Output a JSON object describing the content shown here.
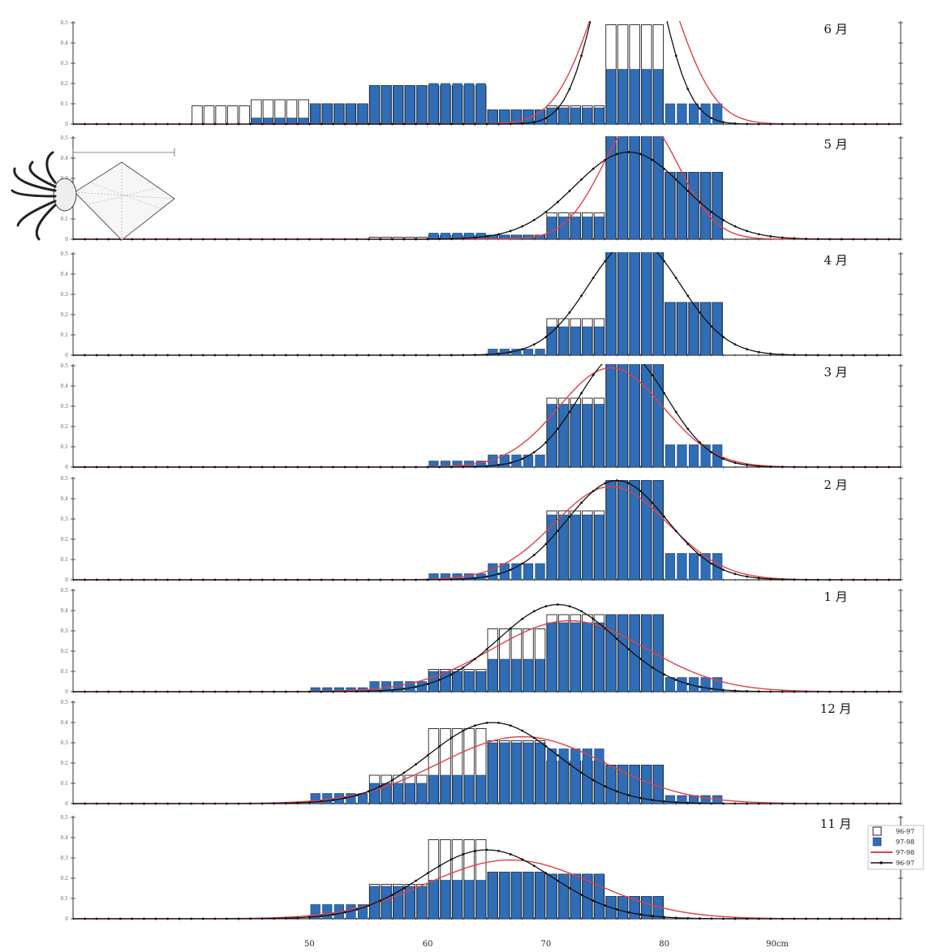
{
  "chart_data": {
    "type": "bar",
    "x_unit_label": "90cm",
    "x_ticks": [
      50,
      60,
      70,
      80
    ],
    "x_range": [
      30,
      100
    ],
    "y_range": [
      0,
      0.5
    ],
    "y_ticks": [
      0,
      0.1,
      0.2,
      0.3,
      0.4,
      0.5
    ],
    "legend": [
      {
        "label": "96-97",
        "kind": "hollow-bar"
      },
      {
        "label": "97-98",
        "kind": "filled-bar"
      },
      {
        "label": "97-98",
        "kind": "red-line"
      },
      {
        "label": "96-97",
        "kind": "black-line"
      }
    ],
    "colors": {
      "filled_bar": "#2f6db6",
      "hollow_bar_stroke": "#222222",
      "red_line": "#e0404a",
      "black_line": "#111111"
    },
    "panels": [
      {
        "month": "6 月",
        "hollow_groups": [
          [
            40,
            45,
            0.09
          ],
          [
            45,
            50,
            0.12
          ],
          [
            50,
            55,
            0.1
          ],
          [
            55,
            60,
            0.19
          ],
          [
            60,
            65,
            0.19
          ],
          [
            65,
            70,
            0.07
          ],
          [
            70,
            75,
            0.09
          ],
          [
            75,
            80,
            0.49
          ]
        ],
        "filled_groups": [
          [
            45,
            50,
            0.03
          ],
          [
            50,
            55,
            0.1
          ],
          [
            55,
            60,
            0.19
          ],
          [
            60,
            65,
            0.2
          ],
          [
            65,
            70,
            0.07
          ],
          [
            70,
            75,
            0.08
          ],
          [
            75,
            80,
            0.27
          ],
          [
            80,
            85,
            0.1
          ]
        ],
        "black_curve": {
          "mu": 77,
          "sigma": 2.6,
          "peak": 1.1
        },
        "red_curve": {
          "mu": 77.5,
          "sigma": 3.4,
          "peak": 0.95
        }
      },
      {
        "month": "5 月",
        "hollow_groups": [
          [
            55,
            60,
            0.01
          ],
          [
            60,
            65,
            0.02
          ],
          [
            65,
            70,
            0.02
          ],
          [
            70,
            75,
            0.13
          ],
          [
            75,
            80,
            0.51
          ],
          [
            80,
            85,
            0.33
          ]
        ],
        "filled_groups": [
          [
            60,
            65,
            0.03
          ],
          [
            65,
            70,
            0.02
          ],
          [
            70,
            75,
            0.11
          ],
          [
            75,
            80,
            0.51
          ],
          [
            80,
            85,
            0.33
          ]
        ],
        "black_curve": {
          "mu": 77,
          "sigma": 4.6,
          "peak": 0.43
        },
        "red_curve": {
          "mu": 78,
          "sigma": 3.2,
          "peak": 0.6
        }
      },
      {
        "month": "4 月",
        "hollow_groups": [
          [
            70,
            75,
            0.18
          ],
          [
            75,
            80,
            0.52
          ],
          [
            80,
            85,
            0.26
          ]
        ],
        "filled_groups": [
          [
            65,
            70,
            0.03
          ],
          [
            70,
            75,
            0.14
          ],
          [
            75,
            80,
            0.52
          ],
          [
            80,
            85,
            0.26
          ]
        ],
        "black_curve": {
          "mu": 77.5,
          "sigma": 3.9,
          "peak": 0.57
        }
      },
      {
        "month": "3 月",
        "hollow_groups": [
          [
            70,
            75,
            0.34
          ],
          [
            75,
            80,
            0.52
          ]
        ],
        "filled_groups": [
          [
            60,
            65,
            0.03
          ],
          [
            65,
            70,
            0.06
          ],
          [
            70,
            75,
            0.31
          ],
          [
            75,
            80,
            0.52
          ],
          [
            80,
            85,
            0.11
          ]
        ],
        "black_curve": {
          "mu": 76.5,
          "sigma": 3.7,
          "peak": 0.57
        },
        "red_curve": {
          "mu": 75.5,
          "sigma": 4.4,
          "peak": 0.49
        }
      },
      {
        "month": "2 月",
        "hollow_groups": [
          [
            70,
            75,
            0.34
          ],
          [
            75,
            80,
            0.49
          ]
        ],
        "filled_groups": [
          [
            60,
            65,
            0.03
          ],
          [
            65,
            70,
            0.08
          ],
          [
            70,
            75,
            0.32
          ],
          [
            75,
            80,
            0.49
          ],
          [
            80,
            85,
            0.13
          ]
        ],
        "black_curve": {
          "mu": 76,
          "sigma": 4.2,
          "peak": 0.49
        },
        "red_curve": {
          "mu": 75.5,
          "sigma": 4.8,
          "peak": 0.46
        }
      },
      {
        "month": "1 月",
        "hollow_groups": [
          [
            60,
            65,
            0.11
          ],
          [
            65,
            70,
            0.31
          ],
          [
            70,
            75,
            0.38
          ],
          [
            75,
            80,
            0.38
          ]
        ],
        "filled_groups": [
          [
            50,
            55,
            0.02
          ],
          [
            55,
            60,
            0.05
          ],
          [
            60,
            65,
            0.1
          ],
          [
            65,
            70,
            0.16
          ],
          [
            70,
            75,
            0.34
          ],
          [
            75,
            80,
            0.38
          ],
          [
            80,
            85,
            0.07
          ]
        ],
        "black_curve": {
          "mu": 71,
          "sigma": 5,
          "peak": 0.43
        },
        "red_curve": {
          "mu": 72,
          "sigma": 6.5,
          "peak": 0.35
        }
      },
      {
        "month": "12 月",
        "hollow_groups": [
          [
            55,
            60,
            0.14
          ],
          [
            60,
            65,
            0.37
          ],
          [
            65,
            70,
            0.31
          ],
          [
            70,
            75,
            0.21
          ],
          [
            75,
            80,
            0.19
          ]
        ],
        "filled_groups": [
          [
            50,
            55,
            0.05
          ],
          [
            55,
            60,
            0.1
          ],
          [
            60,
            65,
            0.14
          ],
          [
            65,
            70,
            0.3
          ],
          [
            70,
            75,
            0.27
          ],
          [
            75,
            80,
            0.19
          ],
          [
            80,
            85,
            0.04
          ]
        ],
        "black_curve": {
          "mu": 65.5,
          "sigma": 5.4,
          "peak": 0.4
        },
        "red_curve": {
          "mu": 68,
          "sigma": 7,
          "peak": 0.33
        }
      },
      {
        "month": "11 月",
        "hollow_groups": [
          [
            55,
            60,
            0.17
          ],
          [
            60,
            65,
            0.39
          ],
          [
            65,
            70,
            0.23
          ],
          [
            70,
            75,
            0.22
          ],
          [
            75,
            80,
            0.11
          ]
        ],
        "filled_groups": [
          [
            50,
            55,
            0.07
          ],
          [
            55,
            60,
            0.16
          ],
          [
            60,
            65,
            0.19
          ],
          [
            65,
            70,
            0.23
          ],
          [
            70,
            75,
            0.22
          ],
          [
            75,
            80,
            0.11
          ]
        ],
        "black_curve": {
          "mu": 65,
          "sigma": 5.5,
          "peak": 0.34
        },
        "red_curve": {
          "mu": 67,
          "sigma": 7,
          "peak": 0.29
        }
      }
    ]
  }
}
